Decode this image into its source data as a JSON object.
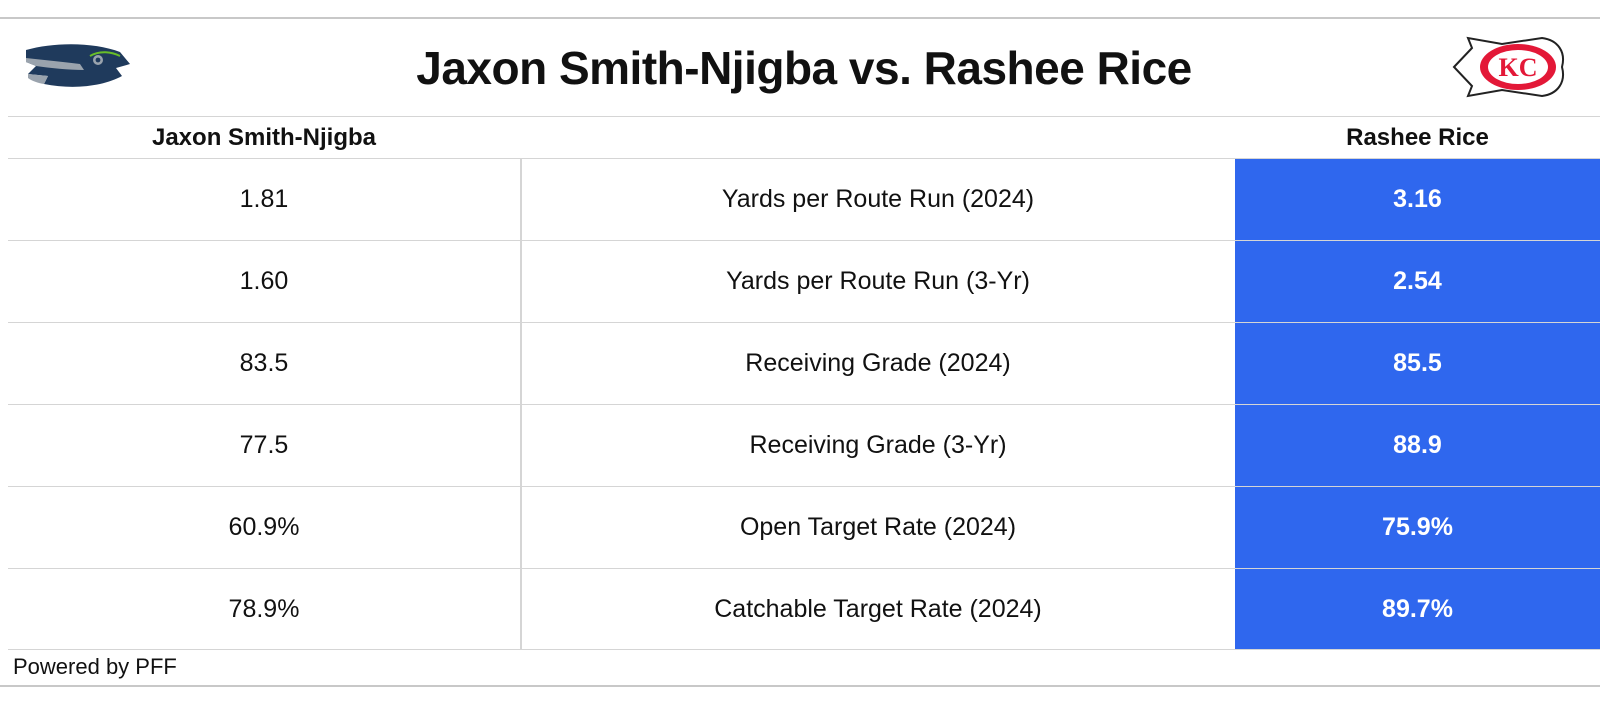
{
  "title": "Jaxon Smith-Njigba vs. Rashee Rice",
  "logos": {
    "left": "seahawks-logo",
    "right": "chiefs-logo",
    "right_text": "KC"
  },
  "colors": {
    "highlight": "#2f67ee",
    "seahawks_navy": "#1f3a5c",
    "seahawks_gray": "#9aa3ad",
    "chiefs_red": "#e31837"
  },
  "headers": {
    "left_player": "Jaxon Smith-Njigba",
    "metric": "",
    "right_player": "Rashee Rice"
  },
  "rows": [
    {
      "left": "1.81",
      "metric": "Yards per Route Run (2024)",
      "right": "3.16"
    },
    {
      "left": "1.60",
      "metric": "Yards per Route Run (3-Yr)",
      "right": "2.54"
    },
    {
      "left": "83.5",
      "metric": "Receiving Grade (2024)",
      "right": "85.5"
    },
    {
      "left": "77.5",
      "metric": "Receiving Grade (3-Yr)",
      "right": "88.9"
    },
    {
      "left": "60.9%",
      "metric": "Open Target Rate (2024)",
      "right": "75.9%"
    },
    {
      "left": "78.9%",
      "metric": "Catchable Target Rate (2024)",
      "right": "89.7%"
    }
  ],
  "footer": "Powered by PFF",
  "chart_data": {
    "type": "table",
    "title": "Jaxon Smith-Njigba vs. Rashee Rice",
    "columns": [
      "Jaxon Smith-Njigba",
      "",
      "Rashee Rice"
    ],
    "rows": [
      [
        "1.81",
        "Yards per Route Run (2024)",
        "3.16"
      ],
      [
        "1.60",
        "Yards per Route Run (3-Yr)",
        "2.54"
      ],
      [
        "83.5",
        "Receiving Grade (2024)",
        "85.5"
      ],
      [
        "77.5",
        "Receiving Grade (3-Yr)",
        "88.9"
      ],
      [
        "60.9%",
        "Open Target Rate (2024)",
        "75.9%"
      ],
      [
        "78.9%",
        "Catchable Target Rate (2024)",
        "89.7%"
      ]
    ],
    "highlighted_column": "Rashee Rice"
  }
}
